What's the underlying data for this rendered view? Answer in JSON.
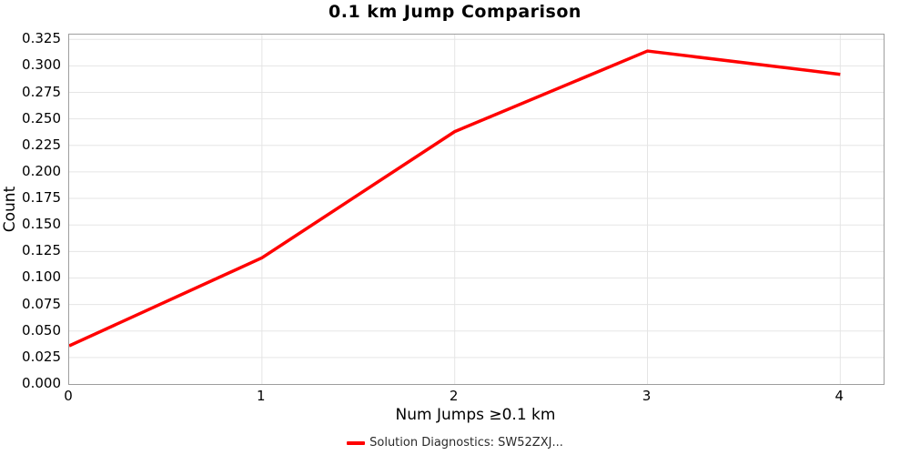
{
  "chart_data": {
    "type": "line",
    "title": "0.1 km Jump Comparison",
    "xlabel": "Num Jumps ≥0.1 km",
    "ylabel": "Count",
    "x": [
      0,
      1,
      2,
      3,
      4
    ],
    "series": [
      {
        "name": "Solution Diagnostics: SW52ZXJ...",
        "color": "#ff0000",
        "values": [
          0.036,
          0.119,
          0.238,
          0.314,
          0.292
        ]
      }
    ],
    "xticks": [
      "0",
      "1",
      "2",
      "3",
      "4"
    ],
    "yticks": [
      "0.000",
      "0.025",
      "0.050",
      "0.075",
      "0.100",
      "0.125",
      "0.150",
      "0.175",
      "0.200",
      "0.225",
      "0.250",
      "0.275",
      "0.300",
      "0.325"
    ],
    "xlim": [
      0,
      4.225
    ],
    "ylim": [
      0,
      0.3295
    ],
    "grid": true,
    "legend_position": "bottom-center"
  },
  "colors": {
    "line": "#ff0000",
    "grid": "#e5e5e5",
    "axis_border": "#9e9e9e",
    "text": "#000000",
    "background": "#ffffff"
  }
}
